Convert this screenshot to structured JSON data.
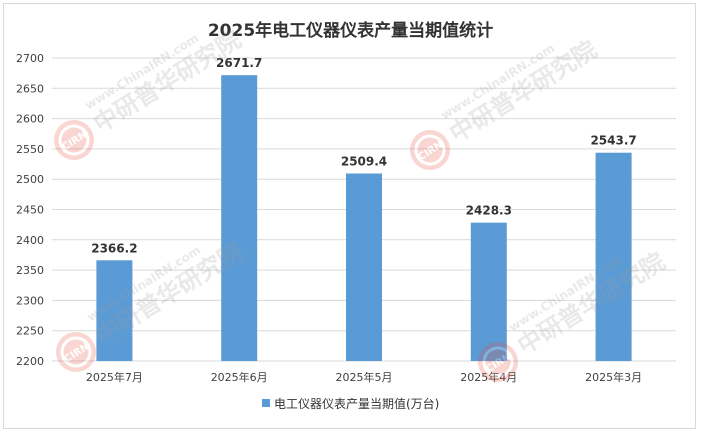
{
  "chart_data": {
    "type": "bar",
    "title": "2025年电工仪器仪表产量当期值统计",
    "categories": [
      "2025年7月",
      "2025年6月",
      "2025年5月",
      "2025年4月",
      "2025年3月"
    ],
    "series": [
      {
        "name": "电工仪器仪表产量当期值(万台)",
        "values": [
          2366.2,
          2671.7,
          2509.4,
          2428.3,
          2543.7
        ],
        "color": "#5b9bd5"
      }
    ],
    "ylim": [
      2200,
      2700
    ],
    "yticks": [
      "2200",
      "2250",
      "2300",
      "2350",
      "2400",
      "2450",
      "2500",
      "2550",
      "2600",
      "2650",
      "2700"
    ],
    "grid": true,
    "legend_position": "bottom"
  },
  "watermark": {
    "text_cn": "中研普华研究院",
    "text_en": "www.ChinaIRN.com",
    "logo_text": "CIRN"
  }
}
